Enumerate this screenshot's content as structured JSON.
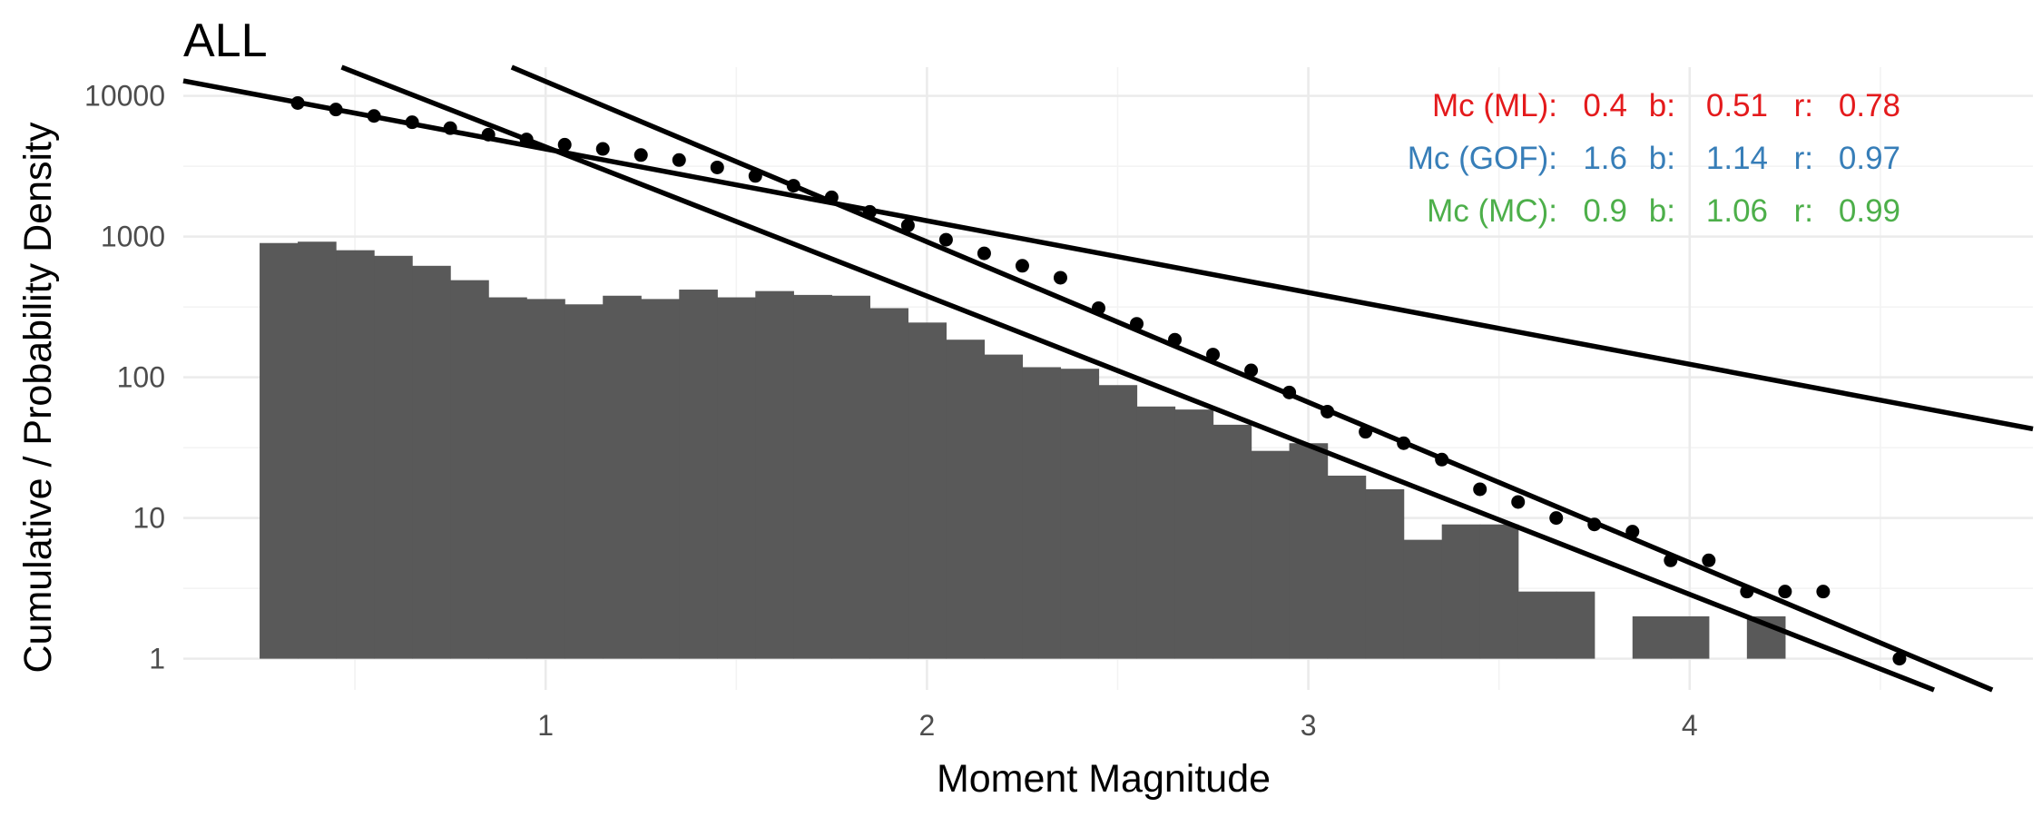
{
  "chart_data": {
    "type": "bar",
    "title": "ALL",
    "xlabel": "Moment Magnitude",
    "ylabel": "Cumulative / Probability Density",
    "y_scale": "log10",
    "xlim": [
      0.05,
      4.9
    ],
    "ylim": [
      0.6,
      16000
    ],
    "x_ticks": [
      1,
      2,
      3,
      4
    ],
    "x_tick_labels": [
      "1",
      "2",
      "3",
      "4"
    ],
    "y_ticks": [
      1,
      10,
      100,
      1000,
      10000
    ],
    "y_tick_labels": [
      "1",
      "10",
      "100",
      "1000",
      "10000"
    ],
    "grid": true,
    "legend": "none",
    "histogram": {
      "name": "Probability Density",
      "color": "#595959",
      "bin_width": 0.1,
      "x": [
        0.3,
        0.4,
        0.5,
        0.6,
        0.7,
        0.8,
        0.9,
        1.0,
        1.1,
        1.2,
        1.3,
        1.4,
        1.5,
        1.6,
        1.7,
        1.8,
        1.9,
        2.0,
        2.1,
        2.2,
        2.3,
        2.4,
        2.5,
        2.6,
        2.7,
        2.8,
        2.9,
        3.0,
        3.1,
        3.2,
        3.3,
        3.4,
        3.5,
        3.6,
        3.7,
        3.8,
        3.9,
        4.0,
        4.1,
        4.2,
        4.3
      ],
      "y": [
        900,
        920,
        800,
        730,
        620,
        490,
        370,
        360,
        330,
        380,
        360,
        420,
        370,
        410,
        385,
        380,
        310,
        245,
        185,
        145,
        118,
        115,
        88,
        62,
        59,
        46,
        30,
        34,
        20,
        16,
        7,
        9,
        9,
        3,
        3,
        0,
        2,
        2,
        0,
        2,
        0
      ]
    },
    "cumulative": {
      "name": "Cumulative",
      "color": "#000000",
      "x": [
        0.35,
        0.45,
        0.55,
        0.65,
        0.75,
        0.85,
        0.95,
        1.05,
        1.15,
        1.25,
        1.35,
        1.45,
        1.55,
        1.65,
        1.75,
        1.85,
        1.95,
        2.05,
        2.15,
        2.25,
        2.35,
        2.45,
        2.55,
        2.65,
        2.75,
        2.85,
        2.95,
        3.05,
        3.15,
        3.25,
        3.35,
        3.45,
        3.55,
        3.65,
        3.75,
        3.85,
        3.95,
        4.05,
        4.15,
        4.25,
        4.35,
        4.55
      ],
      "y": [
        8900,
        8000,
        7200,
        6500,
        5900,
        5300,
        4900,
        4500,
        4200,
        3800,
        3500,
        3100,
        2700,
        2300,
        1900,
        1500,
        1200,
        950,
        760,
        620,
        510,
        310,
        240,
        185,
        145,
        112,
        78,
        57,
        41,
        34,
        26,
        16,
        13,
        10,
        9,
        8,
        5,
        5,
        3,
        3,
        3,
        1
      ]
    },
    "fit_lines": [
      {
        "label": "Mc (ML)",
        "mc": 0.4,
        "b": 0.51,
        "r": 0.78,
        "color": "#e41a1c"
      },
      {
        "label": "Mc (GOF)",
        "mc": 1.6,
        "b": 1.14,
        "r": 0.97,
        "color": "#377eb8"
      },
      {
        "label": "Mc (MC)",
        "mc": 0.9,
        "b": 1.06,
        "r": 0.99,
        "color": "#4daf4a"
      }
    ]
  },
  "annotations": [
    {
      "label": "Mc (ML):",
      "mc": "0.4",
      "b_label": "b:",
      "b": "0.51",
      "r_label": "r:",
      "r": "0.78",
      "color": "#e41a1c"
    },
    {
      "label": "Mc (GOF):",
      "mc": "1.6",
      "b_label": "b:",
      "b": "1.14",
      "r_label": "r:",
      "r": "0.97",
      "color": "#377eb8"
    },
    {
      "label": "Mc (MC):",
      "mc": "0.9",
      "b_label": "b:",
      "b": "1.06",
      "r_label": "r:",
      "r": "0.99",
      "color": "#4daf4a"
    }
  ]
}
